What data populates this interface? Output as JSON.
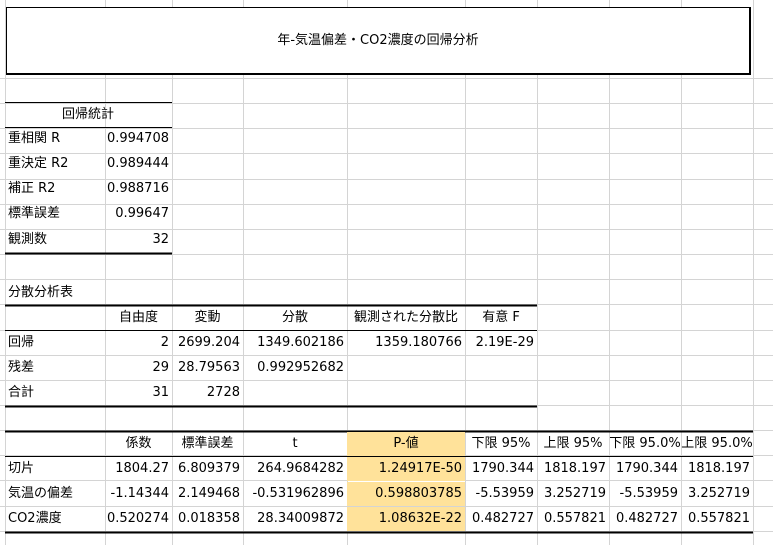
{
  "title": "年-気温偏差・CO2濃度の回帰分析",
  "colors": {
    "grid": "#d4d4d4",
    "highlight": "#ffe29a",
    "border": "#000000"
  },
  "regression_stats": {
    "header": "回帰統計",
    "rows": [
      {
        "label": "重相関 R",
        "value": "0.994708"
      },
      {
        "label": "重決定 R2",
        "value": "0.989444"
      },
      {
        "label": "補正 R2",
        "value": "0.988716"
      },
      {
        "label": "標準誤差",
        "value": "0.99647"
      },
      {
        "label": "観測数",
        "value": "32"
      }
    ]
  },
  "anova": {
    "title": "分散分析表",
    "headers": [
      "自由度",
      "変動",
      "分散",
      "観測された分散比",
      "有意 F"
    ],
    "rows": [
      {
        "label": "回帰",
        "df": "2",
        "ss": "2699.204",
        "ms": "1349.602186",
        "f": "1359.180766",
        "sigf": "2.19E-29"
      },
      {
        "label": "残差",
        "df": "29",
        "ss": "28.79563",
        "ms": "0.992952682",
        "f": "",
        "sigf": ""
      },
      {
        "label": "合計",
        "df": "31",
        "ss": "2728",
        "ms": "",
        "f": "",
        "sigf": ""
      }
    ]
  },
  "coefficients": {
    "headers": [
      "係数",
      "標準誤差",
      "t",
      "P-値",
      "下限 95%",
      "上限 95%",
      "下限 95.0%",
      "上限 95.0%"
    ],
    "rows": [
      {
        "label": "切片",
        "coef": "1804.27",
        "se": "6.809379",
        "t": "264.9684282",
        "p": "1.24917E-50",
        "lo95": "1790.344",
        "hi95": "1818.197",
        "lo950": "1790.344",
        "hi950": "1818.197"
      },
      {
        "label": "気温の偏差",
        "coef": "-1.14344",
        "se": "2.149468",
        "t": "-0.531962896",
        "p": "0.598803785",
        "lo95": "-5.53959",
        "hi95": "3.252719",
        "lo950": "-5.53959",
        "hi950": "3.252719"
      },
      {
        "label": "CO2濃度",
        "coef": "0.520274",
        "se": "0.018358",
        "t": "28.34009872",
        "p": "1.08632E-22",
        "lo95": "0.482727",
        "hi95": "0.557821",
        "lo950": "0.482727",
        "hi950": "0.557821"
      }
    ]
  }
}
